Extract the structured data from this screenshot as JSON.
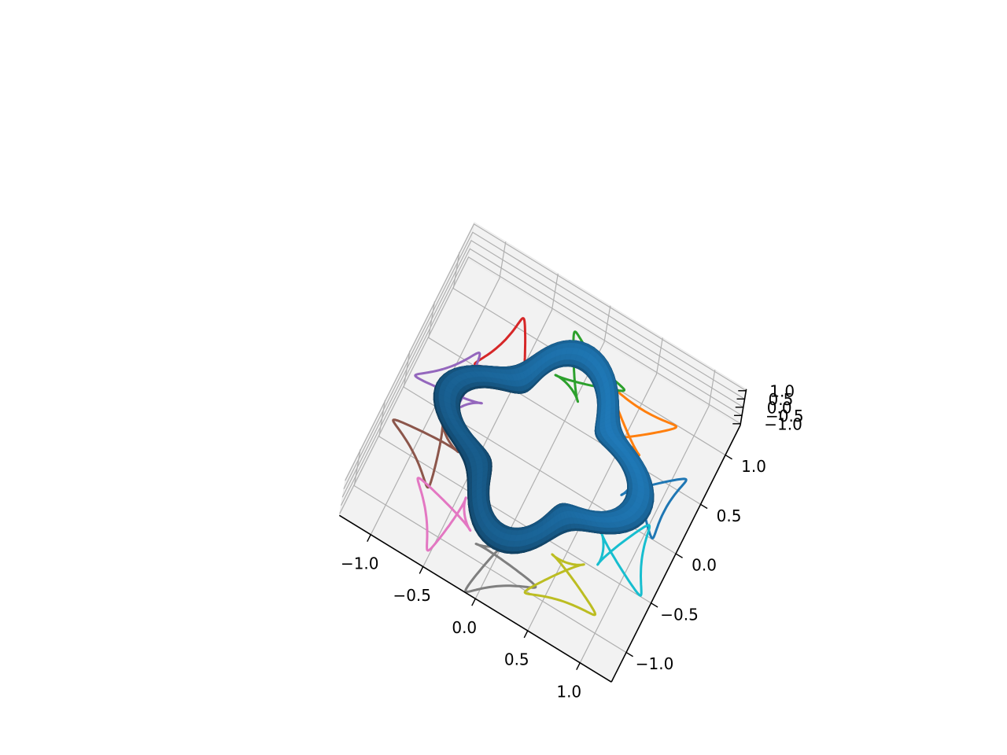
{
  "chart_data": {
    "type": "3d-surface-with-line-projections",
    "title": "",
    "xlabel": "",
    "ylabel": "",
    "zlabel": "",
    "x_ticks": [
      "−1.0",
      "−0.5",
      "0.0",
      "0.5",
      "1.0"
    ],
    "y_ticks": [
      "−1.0",
      "−0.5",
      "0.0",
      "0.5",
      "1.0"
    ],
    "z_ticks": [
      "−1.0",
      "−0.5",
      "0.0",
      "0.5",
      "1.0"
    ],
    "xlim": [
      -1.3,
      1.3
    ],
    "ylim": [
      -1.3,
      1.3
    ],
    "zlim": [
      -1.1,
      1.1
    ],
    "grid": true,
    "surface": {
      "shape": "wavy torus ring",
      "major_radius": 0.75,
      "minor_radius": 0.12,
      "wave_amplitude": 0.15,
      "wave_count": 4,
      "color": "#1f77b4"
    },
    "curves": {
      "count": 10,
      "plane": "floor (z = -1.1)",
      "colors": [
        "#1f77b4",
        "#ff7f0e",
        "#2ca02c",
        "#d62728",
        "#9467bd",
        "#8c564b",
        "#e377c2",
        "#7f7f7f",
        "#bcbd22",
        "#17becf"
      ]
    }
  }
}
